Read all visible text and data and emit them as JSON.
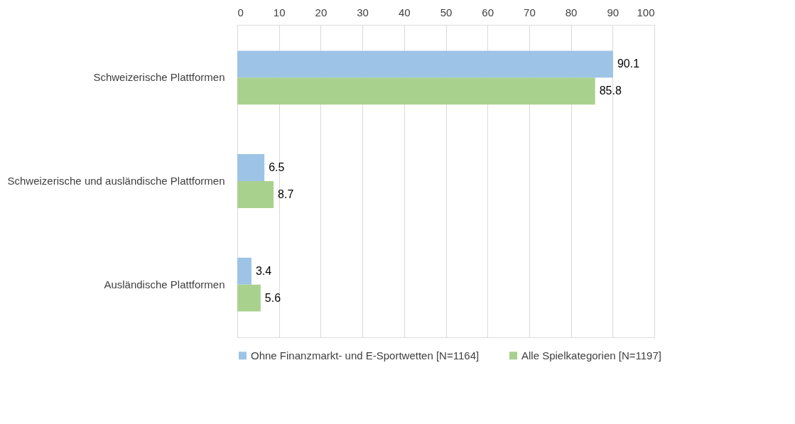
{
  "chart_data": {
    "type": "bar",
    "orientation": "horizontal",
    "categories": [
      "Schweizerische Plattformen",
      "Schweizerische und ausländische Plattformen",
      "Ausländische Plattformen"
    ],
    "series": [
      {
        "name": "Ohne Finanzmarkt- und E-Sportwetten [N=1164]",
        "color": "#9dc3e6",
        "values": [
          90.1,
          6.5,
          3.4
        ]
      },
      {
        "name": "Alle Spielkategorien [N=1197]",
        "color": "#a9d18e",
        "values": [
          85.8,
          8.7,
          5.6
        ]
      }
    ],
    "xlim": [
      0,
      100
    ],
    "xticks": [
      0,
      10,
      20,
      30,
      40,
      50,
      60,
      70,
      80,
      90,
      100
    ],
    "grid": "x",
    "legend": "bottom",
    "data_labels": true
  }
}
